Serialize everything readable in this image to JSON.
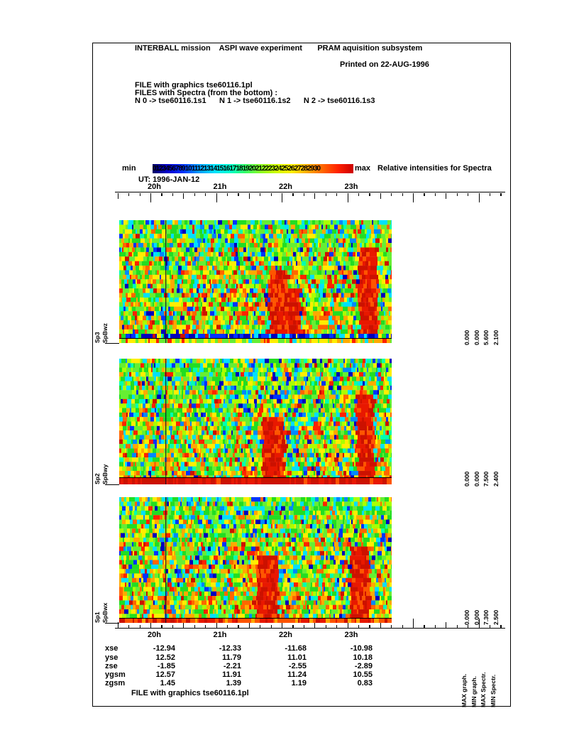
{
  "header": {
    "title": "INTERBALL mission    ASPI wave experiment       PRAM aquisition subsystem",
    "printed": "Printed on 22-AUG-1996"
  },
  "file_info": {
    "line1": "FILE with graphics tse60116.1pl",
    "line2": "FILES with Spectra (from the bottom) :",
    "line3": "N 0 -> tse60116.1s1      N 1 -> tse60116.1s2      N 2 -> tse60116.1s3"
  },
  "colorbar": {
    "min_label": "min",
    "max_label": "max",
    "numbers": "0123456789101112131415161718192021222324252627282930",
    "title": "Relative intensities for Spectra",
    "gradient": [
      "#000066",
      "#0000cc",
      "#0033ff",
      "#0099ff",
      "#00e0ff",
      "#00ffcc",
      "#33ff66",
      "#88ff22",
      "#ccff00",
      "#ffee00",
      "#ffaa00",
      "#ff6600",
      "#ff2200",
      "#cc0000"
    ]
  },
  "time_axis": {
    "ut_label": "UT: 1996-JAN-12",
    "hours": [
      "20h",
      "21h",
      "22h",
      "23h"
    ]
  },
  "panels": [
    {
      "name": "Sp3",
      "channel": "SpBwz",
      "values": [
        "0.000",
        "0.000",
        "5.600",
        "2.100"
      ]
    },
    {
      "name": "Sp2",
      "channel": "SpBwy",
      "values": [
        "0.000",
        "0.000",
        "7.500",
        "2.400"
      ]
    },
    {
      "name": "Sp1",
      "channel": "SpBwx",
      "values": [
        "0.000",
        "0.000",
        "7.300",
        "2.500"
      ]
    }
  ],
  "legend_labels": [
    "MAX graph.",
    "MIN graph.",
    "MAX Spectr.",
    "MIN Spectr."
  ],
  "table": {
    "rows": [
      {
        "label": "xse",
        "values": [
          "-12.94",
          "-12.33",
          "-11.68",
          "-10.98"
        ]
      },
      {
        "label": "yse",
        "values": [
          "12.52",
          "11.79",
          "11.01",
          "10.18"
        ]
      },
      {
        "label": "zse",
        "values": [
          "-1.85",
          "-2.21",
          "-2.55",
          "-2.89"
        ]
      },
      {
        "label": "ygsm",
        "values": [
          "12.57",
          "11.91",
          "11.24",
          "10.55"
        ]
      },
      {
        "label": "zgsm",
        "values": [
          "1.45",
          "1.39",
          "1.19",
          "0.83"
        ]
      }
    ]
  },
  "footer": {
    "file_line": "FILE with graphics tse60116.1pl"
  },
  "chart_data": {
    "type": "heatmap",
    "title": "INTERBALL mission ASPI wave experiment - PRAM aquisition subsystem spectrograms",
    "x_axis": {
      "label": "UT: 1996-JAN-12",
      "tick_labels": [
        "20h",
        "21h",
        "22h",
        "23h"
      ],
      "approx_time_range": [
        "19:30",
        "23:40"
      ]
    },
    "color_scale": {
      "min_label": "min",
      "max_label": "max",
      "tick_numbers": [
        0,
        1,
        2,
        3,
        4,
        5,
        6,
        7,
        8,
        9,
        10,
        11,
        12,
        13,
        14,
        15,
        16,
        17,
        18,
        19,
        20,
        21,
        22,
        23,
        24,
        25,
        26,
        27,
        28,
        29,
        30
      ],
      "description": "Relative intensities for Spectra",
      "palette": "dark-blue to blue to cyan to green to yellow to orange to red"
    },
    "panels": [
      {
        "position": "top",
        "name": "Sp3",
        "channel": "SpBwz",
        "spectra_file": "tse60116.1s3",
        "MAX_graph": 0.0,
        "MIN_graph": 0.0,
        "MAX_Spectr": 5.6,
        "MIN_Spectr": 2.1
      },
      {
        "position": "middle",
        "name": "Sp2",
        "channel": "SpBwy",
        "spectra_file": "tse60116.1s2",
        "MAX_graph": 0.0,
        "MIN_graph": 0.0,
        "MAX_Spectr": 7.5,
        "MIN_Spectr": 2.4
      },
      {
        "position": "bottom",
        "name": "Sp1",
        "channel": "SpBwx",
        "spectra_file": "tse60116.1s1",
        "MAX_graph": 0.0,
        "MIN_graph": 0.0,
        "MAX_Spectr": 7.3,
        "MIN_Spectr": 2.5
      }
    ],
    "ephemeris_table": {
      "columns": [
        "20h",
        "21h",
        "22h",
        "23h"
      ],
      "rows": [
        {
          "label": "xse",
          "values": [
            -12.94,
            -12.33,
            -11.68,
            -10.98
          ]
        },
        {
          "label": "yse",
          "values": [
            12.52,
            11.79,
            11.01,
            10.18
          ]
        },
        {
          "label": "zse",
          "values": [
            -1.85,
            -2.21,
            -2.55,
            -2.89
          ]
        },
        {
          "label": "ygsm",
          "values": [
            12.57,
            11.91,
            11.24,
            10.55
          ]
        },
        {
          "label": "zgsm",
          "values": [
            1.45,
            1.39,
            1.19,
            0.83
          ]
        }
      ]
    }
  }
}
